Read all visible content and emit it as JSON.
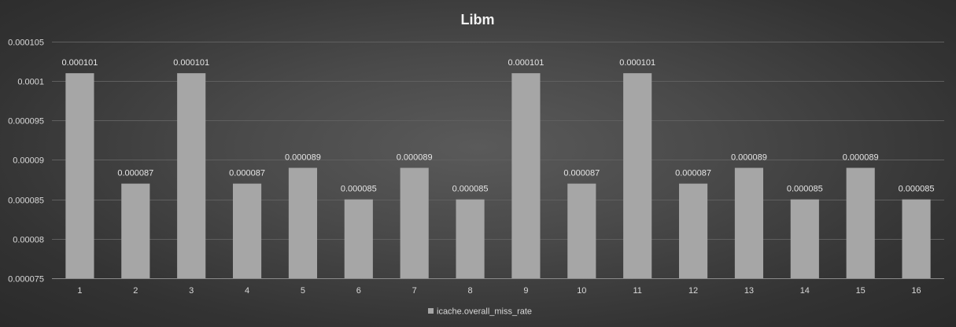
{
  "chart_data": {
    "type": "bar",
    "title": "Libm",
    "xlabel": "",
    "ylabel": "",
    "categories": [
      "1",
      "2",
      "3",
      "4",
      "5",
      "6",
      "7",
      "8",
      "9",
      "10",
      "11",
      "12",
      "13",
      "14",
      "15",
      "16"
    ],
    "series": [
      {
        "name": "icache.overall_miss_rate",
        "values": [
          0.000101,
          8.7e-05,
          0.000101,
          8.7e-05,
          8.9e-05,
          8.5e-05,
          8.9e-05,
          8.5e-05,
          0.000101,
          8.7e-05,
          0.000101,
          8.7e-05,
          8.9e-05,
          8.5e-05,
          8.9e-05,
          8.5e-05
        ],
        "data_labels": [
          "0.000101",
          "0.000087",
          "0.000101",
          "0.000087",
          "0.000089",
          "0.000085",
          "0.000089",
          "0.000085",
          "0.000101",
          "0.000087",
          "0.000101",
          "0.000087",
          "0.000089",
          "0.000085",
          "0.000089",
          "0.000085"
        ],
        "color": "#a6a6a6"
      }
    ],
    "ylim": [
      7.5e-05,
      0.000105
    ],
    "y_ticks": [
      7.5e-05,
      8e-05,
      8.5e-05,
      9e-05,
      9.5e-05,
      0.0001,
      0.000105
    ],
    "y_tick_labels": [
      "0.000075",
      "0.00008",
      "0.000085",
      "0.00009",
      "0.000095",
      "0.0001",
      "0.000105"
    ],
    "grid": true,
    "legend_position": "bottom",
    "colors": {
      "bar": "#a6a6a6",
      "grid": "#5f5f5f",
      "text": "#d9d9d9",
      "title": "#f2f2f2"
    }
  }
}
